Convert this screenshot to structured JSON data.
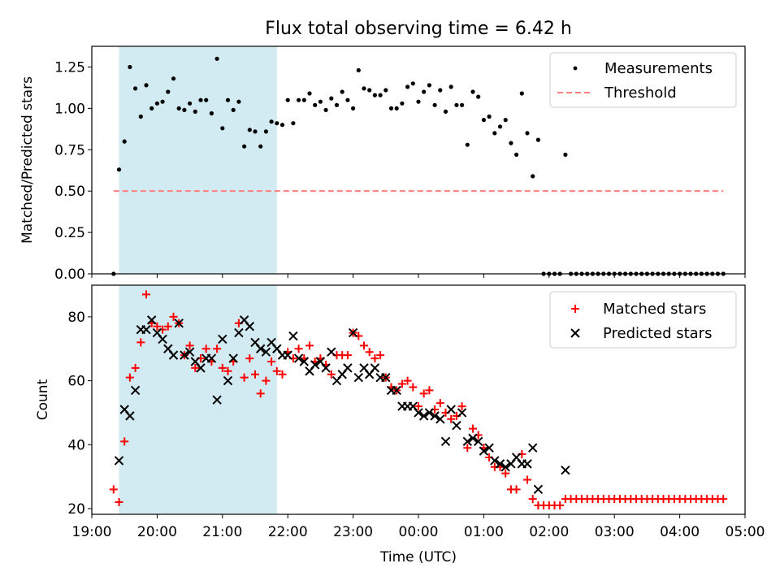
{
  "figure_title": "Flux total observing time = 6.42 h",
  "colors": {
    "shade": "#add8e6",
    "threshold": "#ff7f7f",
    "matched": "#ff0000",
    "predicted": "#000000",
    "measurements": "#000000"
  },
  "chart_data": [
    {
      "type": "scatter",
      "title": "Flux total observing time = 6.42 h",
      "ylabel": "Matched/Predicted stars",
      "xlabel": "",
      "x_unit": "hours since 19:00 UTC",
      "xlim": [
        19.0,
        29.0
      ],
      "ylim": [
        0,
        1.375
      ],
      "yticks": [
        "0.00",
        "0.25",
        "0.50",
        "0.75",
        "1.00",
        "1.25"
      ],
      "grid": false,
      "legend_position": "upper right",
      "shaded_interval": [
        "19:25",
        "21:50"
      ],
      "series": [
        {
          "name": "Measurements",
          "marker": "dot",
          "x": [
            "19:20",
            "19:25",
            "19:30",
            "19:35",
            "19:40",
            "19:45",
            "19:50",
            "19:55",
            "20:00",
            "20:05",
            "20:10",
            "20:15",
            "20:20",
            "20:25",
            "20:30",
            "20:35",
            "20:40",
            "20:45",
            "20:50",
            "20:55",
            "21:00",
            "21:05",
            "21:10",
            "21:15",
            "21:20",
            "21:25",
            "21:30",
            "21:35",
            "21:40",
            "21:45",
            "21:50",
            "21:55",
            "22:00",
            "22:05",
            "22:10",
            "22:15",
            "22:20",
            "22:25",
            "22:30",
            "22:35",
            "22:40",
            "22:45",
            "22:50",
            "22:55",
            "23:00",
            "23:05",
            "23:10",
            "23:15",
            "23:20",
            "23:25",
            "23:30",
            "23:35",
            "23:40",
            "23:45",
            "23:50",
            "23:55",
            "00:00",
            "00:05",
            "00:10",
            "00:15",
            "00:20",
            "00:25",
            "00:30",
            "00:35",
            "00:40",
            "00:45",
            "00:50",
            "00:55",
            "01:00",
            "01:05",
            "01:10",
            "01:15",
            "01:20",
            "01:25",
            "01:30",
            "01:35",
            "01:40",
            "01:45",
            "01:50",
            "01:55",
            "02:00",
            "02:05",
            "02:10",
            "02:15",
            "02:20",
            "02:25",
            "02:30",
            "02:35",
            "02:40",
            "02:45",
            "02:50",
            "02:55",
            "03:00",
            "03:05",
            "03:10",
            "03:15",
            "03:20",
            "03:25",
            "03:30",
            "03:35",
            "03:40",
            "03:45",
            "03:50",
            "03:55",
            "04:00",
            "04:05",
            "04:10",
            "04:15",
            "04:20",
            "04:25",
            "04:30",
            "04:35",
            "04:40"
          ],
          "y": [
            0.0,
            0.63,
            0.8,
            1.25,
            1.12,
            0.95,
            1.14,
            1.0,
            1.03,
            1.04,
            1.1,
            1.18,
            1.0,
            0.99,
            1.03,
            0.98,
            1.05,
            1.05,
            0.97,
            1.3,
            0.88,
            1.05,
            0.99,
            1.04,
            0.77,
            0.87,
            0.86,
            0.77,
            0.86,
            0.92,
            0.91,
            0.9,
            1.05,
            0.91,
            1.05,
            1.05,
            1.09,
            1.02,
            1.04,
            0.99,
            1.06,
            1.02,
            1.1,
            1.05,
            1.0,
            1.23,
            1.12,
            1.11,
            1.08,
            1.08,
            1.11,
            1.0,
            1.0,
            1.03,
            1.13,
            1.15,
            1.04,
            1.1,
            1.14,
            1.02,
            1.11,
            0.98,
            1.13,
            1.02,
            1.02,
            0.78,
            1.1,
            1.07,
            0.93,
            0.95,
            0.85,
            0.89,
            0.93,
            0.79,
            0.72,
            1.09,
            0.85,
            0.59,
            0.81,
            0.0,
            0.0,
            0.0,
            0.0,
            0.72,
            0.0,
            0.0,
            0.0,
            0.0,
            0.0,
            0.0,
            0.0,
            0.0,
            0.0,
            0.0,
            0.0,
            0.0,
            0.0,
            0.0,
            0.0,
            0.0,
            0.0,
            0.0,
            0.0,
            0.0,
            0.0,
            0.0,
            0.0,
            0.0,
            0.0,
            0.0,
            0.0,
            0.0,
            0.0
          ]
        },
        {
          "name": "Threshold",
          "style": "dashed",
          "x": [
            "19:20",
            "04:40"
          ],
          "y": [
            0.5,
            0.5
          ]
        }
      ]
    },
    {
      "type": "scatter",
      "title": "",
      "ylabel": "Count",
      "xlabel": "Time (UTC)",
      "x_unit": "hours since 19:00 UTC",
      "xlim": [
        19.0,
        29.0
      ],
      "ylim": [
        18.2,
        89.9
      ],
      "xticks": [
        "19:00",
        "20:00",
        "21:00",
        "22:00",
        "23:00",
        "00:00",
        "01:00",
        "02:00",
        "03:00",
        "04:00",
        "05:00"
      ],
      "yticks": [
        "20",
        "40",
        "60",
        "80"
      ],
      "grid": false,
      "legend_position": "upper right",
      "shaded_interval": [
        "19:25",
        "21:50"
      ],
      "series": [
        {
          "name": "Matched stars",
          "marker": "plus",
          "x": [
            "19:20",
            "19:25",
            "19:30",
            "19:35",
            "19:40",
            "19:45",
            "19:50",
            "19:55",
            "20:00",
            "20:05",
            "20:10",
            "20:15",
            "20:20",
            "20:25",
            "20:30",
            "20:35",
            "20:40",
            "20:45",
            "20:50",
            "20:55",
            "21:00",
            "21:05",
            "21:10",
            "21:15",
            "21:20",
            "21:25",
            "21:30",
            "21:35",
            "21:40",
            "21:45",
            "21:50",
            "21:55",
            "22:00",
            "22:05",
            "22:10",
            "22:15",
            "22:20",
            "22:25",
            "22:30",
            "22:35",
            "22:40",
            "22:45",
            "22:50",
            "22:55",
            "23:00",
            "23:05",
            "23:10",
            "23:15",
            "23:20",
            "23:25",
            "23:30",
            "23:35",
            "23:40",
            "23:45",
            "23:50",
            "23:55",
            "00:00",
            "00:05",
            "00:10",
            "00:15",
            "00:20",
            "00:25",
            "00:30",
            "00:35",
            "00:40",
            "00:45",
            "00:50",
            "00:55",
            "01:00",
            "01:05",
            "01:10",
            "01:15",
            "01:20",
            "01:25",
            "01:30",
            "01:35",
            "01:40",
            "01:45",
            "01:50",
            "01:55",
            "02:00",
            "02:05",
            "02:10",
            "02:15",
            "02:20",
            "02:25",
            "02:30",
            "02:35",
            "02:40",
            "02:45",
            "02:50",
            "02:55",
            "03:00",
            "03:05",
            "03:10",
            "03:15",
            "03:20",
            "03:25",
            "03:30",
            "03:35",
            "03:40",
            "03:45",
            "03:50",
            "03:55",
            "04:00",
            "04:05",
            "04:10",
            "04:15",
            "04:20",
            "04:25",
            "04:30",
            "04:35",
            "04:40"
          ],
          "y": [
            26,
            22,
            41,
            61,
            64,
            72,
            87,
            78,
            77,
            76,
            77,
            80,
            78,
            68,
            71,
            64,
            67,
            70,
            66,
            70,
            64,
            63,
            66,
            78,
            61,
            67,
            62,
            56,
            60,
            66,
            63,
            62,
            69,
            67,
            70,
            67,
            71,
            66,
            67,
            65,
            62,
            68,
            68,
            68,
            75,
            74,
            71,
            69,
            67,
            68,
            61,
            58,
            57,
            59,
            60,
            58,
            52,
            56,
            57,
            51,
            53,
            50,
            48,
            49,
            52,
            39,
            45,
            43,
            39,
            36,
            33,
            33,
            31,
            26,
            26,
            37,
            29,
            23,
            21,
            21,
            21,
            21,
            21,
            23,
            23,
            23,
            23,
            23,
            23,
            23,
            23,
            23,
            23,
            23,
            23,
            23,
            23,
            23,
            23,
            23,
            23,
            23,
            23,
            23,
            23,
            23,
            23,
            23,
            23,
            23,
            23,
            23,
            23
          ]
        },
        {
          "name": "Predicted stars",
          "marker": "x",
          "x": [
            "19:25",
            "19:30",
            "19:35",
            "19:40",
            "19:45",
            "19:50",
            "19:55",
            "20:00",
            "20:05",
            "20:10",
            "20:15",
            "20:20",
            "20:25",
            "20:30",
            "20:35",
            "20:40",
            "20:45",
            "20:50",
            "20:55",
            "21:00",
            "21:05",
            "21:10",
            "21:15",
            "21:20",
            "21:25",
            "21:30",
            "21:35",
            "21:40",
            "21:45",
            "21:50",
            "21:55",
            "22:00",
            "22:05",
            "22:10",
            "22:15",
            "22:20",
            "22:25",
            "22:30",
            "22:35",
            "22:40",
            "22:45",
            "22:50",
            "22:55",
            "23:00",
            "23:05",
            "23:10",
            "23:15",
            "23:20",
            "23:25",
            "23:30",
            "23:35",
            "23:40",
            "23:45",
            "23:50",
            "23:55",
            "00:00",
            "00:05",
            "00:10",
            "00:15",
            "00:20",
            "00:25",
            "00:30",
            "00:35",
            "00:40",
            "00:45",
            "00:50",
            "00:55",
            "01:00",
            "01:05",
            "01:10",
            "01:15",
            "01:20",
            "01:25",
            "01:30",
            "01:35",
            "01:40",
            "01:45",
            "01:50",
            "02:15"
          ],
          "y": [
            35,
            51,
            49,
            57,
            76,
            76,
            79,
            75,
            73,
            70,
            68,
            78,
            68,
            69,
            66,
            64,
            67,
            67,
            54,
            73,
            60,
            67,
            75,
            79,
            77,
            72,
            70,
            69,
            72,
            70,
            68,
            68,
            74,
            67,
            66,
            63,
            65,
            66,
            64,
            69,
            60,
            62,
            64,
            75,
            61,
            64,
            62,
            64,
            61,
            61,
            57,
            57,
            52,
            52,
            52,
            50,
            49,
            50,
            49,
            48,
            41,
            51,
            46,
            50,
            41,
            42,
            41,
            38,
            39,
            35,
            34,
            33,
            34,
            36,
            34,
            34,
            39,
            26,
            32
          ]
        }
      ]
    }
  ]
}
